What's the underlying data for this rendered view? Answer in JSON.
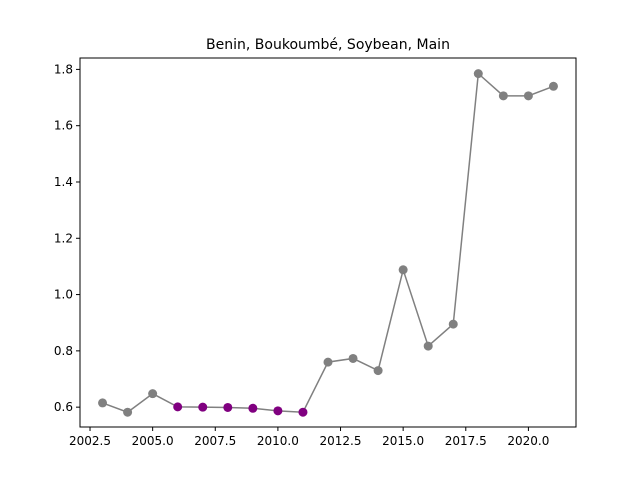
{
  "chart_data": {
    "type": "line",
    "title": "Benin, Boukoumbé, Soybean, Main",
    "xlabel": "",
    "ylabel": "",
    "xlim": [
      2002.1,
      2021.9
    ],
    "ylim": [
      0.5295,
      1.8405
    ],
    "x_ticks": [
      2002.5,
      2005.0,
      2007.5,
      2010.0,
      2012.5,
      2015.0,
      2017.5,
      2020.0
    ],
    "y_ticks": [
      0.6,
      0.8,
      1.0,
      1.2,
      1.4,
      1.6,
      1.8
    ],
    "grid": false,
    "line_color": "#808080",
    "series": [
      {
        "x": [
          2003,
          2004,
          2005,
          2006,
          2007,
          2008,
          2009,
          2010,
          2011,
          2012,
          2013,
          2014,
          2015,
          2016,
          2017,
          2018,
          2019,
          2020,
          2021
        ],
        "values": [
          0.615,
          0.582,
          0.648,
          0.601,
          0.6,
          0.599,
          0.596,
          0.587,
          0.582,
          0.76,
          0.773,
          0.73,
          1.088,
          0.817,
          0.895,
          1.785,
          1.706,
          1.706,
          1.74
        ],
        "highlighted": [
          false,
          false,
          false,
          true,
          true,
          true,
          true,
          true,
          true,
          false,
          false,
          false,
          false,
          false,
          false,
          false,
          false,
          false,
          false
        ]
      }
    ],
    "marker_color": "#808080",
    "highlight_color": "#800080"
  }
}
